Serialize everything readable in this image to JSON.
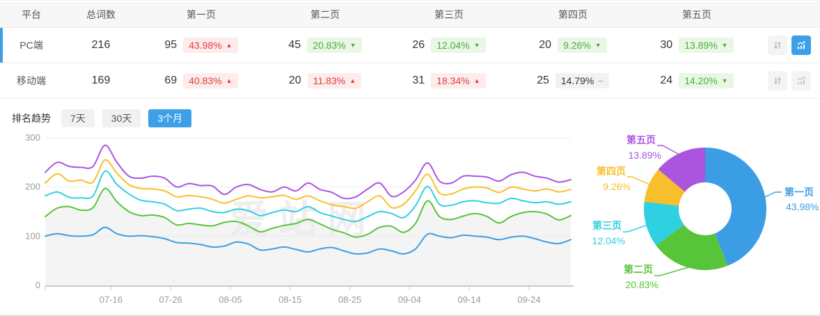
{
  "colors": {
    "accent_blue": "#3d9fe8",
    "series": [
      "#3b9ee5",
      "#57c43a",
      "#2fd0e2",
      "#f9be2b",
      "#ab55df"
    ],
    "badge_up_text": "#e23c3c",
    "badge_down_text": "#43b234",
    "area_fill": "#f4f4f4"
  },
  "table": {
    "headers": [
      "平台",
      "总词数",
      "第一页",
      "第二页",
      "第三页",
      "第四页",
      "第五页"
    ],
    "rows": [
      {
        "platform": "PC端",
        "total": "216",
        "selected": true,
        "pages": [
          {
            "count": "95",
            "pct": "43.98%",
            "dir": "up"
          },
          {
            "count": "45",
            "pct": "20.83%",
            "dir": "down"
          },
          {
            "count": "26",
            "pct": "12.04%",
            "dir": "down"
          },
          {
            "count": "20",
            "pct": "9.26%",
            "dir": "down"
          },
          {
            "count": "30",
            "pct": "13.89%",
            "dir": "down"
          }
        ]
      },
      {
        "platform": "移动端",
        "total": "169",
        "selected": false,
        "pages": [
          {
            "count": "69",
            "pct": "40.83%",
            "dir": "up"
          },
          {
            "count": "20",
            "pct": "11.83%",
            "dir": "up"
          },
          {
            "count": "31",
            "pct": "18.34%",
            "dir": "up"
          },
          {
            "count": "25",
            "pct": "14.79%",
            "dir": "flat"
          },
          {
            "count": "24",
            "pct": "14.20%",
            "dir": "down"
          }
        ]
      }
    ]
  },
  "trend": {
    "title": "排名趋势",
    "tabs": [
      {
        "label": "7天",
        "active": false
      },
      {
        "label": "30天",
        "active": false
      },
      {
        "label": "3个月",
        "active": true
      }
    ]
  },
  "watermark": "爱站网",
  "chart_data": [
    {
      "type": "line",
      "title": "排名趋势",
      "range": "3个月",
      "ylim": [
        0,
        300
      ],
      "y_ticks": [
        0,
        100,
        200,
        300
      ],
      "grid": true,
      "x_tick_labels": [
        "07-16",
        "07-26",
        "08-05",
        "08-15",
        "08-25",
        "09-04",
        "09-14",
        "09-24"
      ],
      "x": [
        "07-05",
        "07-07",
        "07-09",
        "07-11",
        "07-13",
        "07-15",
        "07-17",
        "07-19",
        "07-21",
        "07-23",
        "07-25",
        "07-27",
        "07-29",
        "07-31",
        "08-02",
        "08-04",
        "08-06",
        "08-08",
        "08-10",
        "08-12",
        "08-14",
        "08-16",
        "08-18",
        "08-20",
        "08-22",
        "08-24",
        "08-26",
        "08-28",
        "08-30",
        "09-01",
        "09-03",
        "09-05",
        "09-07",
        "09-09",
        "09-11",
        "09-13",
        "09-15",
        "09-17",
        "09-19",
        "09-21",
        "09-23",
        "09-25",
        "09-27",
        "09-29",
        "10-01"
      ],
      "area_fill_under": "第二页",
      "series": [
        {
          "name": "第一页",
          "color": "#3b9ee5",
          "values": [
            100,
            105,
            101,
            100,
            103,
            118,
            105,
            100,
            101,
            99,
            95,
            87,
            86,
            83,
            78,
            80,
            88,
            84,
            72,
            74,
            78,
            73,
            68,
            74,
            77,
            70,
            64,
            66,
            74,
            70,
            64,
            74,
            104,
            100,
            97,
            102,
            100,
            98,
            93,
            98,
            100,
            95,
            88,
            85,
            93
          ]
        },
        {
          "name": "第二页",
          "color": "#57c43a",
          "values": [
            140,
            157,
            160,
            153,
            158,
            197,
            170,
            150,
            142,
            143,
            138,
            123,
            126,
            123,
            121,
            128,
            130,
            121,
            109,
            116,
            122,
            126,
            134,
            125,
            114,
            107,
            98,
            104,
            118,
            120,
            108,
            126,
            172,
            140,
            134,
            141,
            146,
            140,
            127,
            140,
            148,
            150,
            145,
            133,
            142
          ]
        },
        {
          "name": "第三页",
          "color": "#2fd0e2",
          "values": [
            182,
            190,
            179,
            178,
            182,
            232,
            205,
            186,
            173,
            170,
            165,
            152,
            155,
            157,
            150,
            148,
            155,
            152,
            142,
            148,
            153,
            150,
            160,
            148,
            141,
            134,
            130,
            140,
            150,
            146,
            138,
            162,
            201,
            165,
            163,
            170,
            172,
            168,
            167,
            177,
            172,
            168,
            170,
            165,
            170
          ]
        },
        {
          "name": "第四页",
          "color": "#f9be2b",
          "values": [
            208,
            227,
            212,
            214,
            210,
            255,
            228,
            205,
            197,
            196,
            192,
            180,
            183,
            180,
            175,
            167,
            175,
            182,
            178,
            180,
            183,
            175,
            182,
            172,
            164,
            160,
            157,
            170,
            182,
            158,
            165,
            192,
            226,
            188,
            186,
            196,
            200,
            198,
            189,
            200,
            196,
            192,
            196,
            190,
            195
          ]
        },
        {
          "name": "第五页",
          "color": "#ab55df",
          "values": [
            230,
            250,
            242,
            240,
            242,
            285,
            250,
            222,
            218,
            222,
            218,
            200,
            207,
            203,
            202,
            185,
            200,
            205,
            195,
            190,
            200,
            192,
            208,
            195,
            189,
            177,
            180,
            196,
            208,
            181,
            190,
            214,
            249,
            212,
            208,
            222,
            222,
            220,
            212,
            225,
            230,
            222,
            218,
            210,
            215
          ]
        }
      ]
    },
    {
      "type": "pie",
      "donut": true,
      "unit": "%",
      "labels": [
        "第一页",
        "第二页",
        "第三页",
        "第四页",
        "第五页"
      ],
      "values": [
        43.98,
        20.83,
        12.04,
        9.26,
        13.89
      ],
      "display": [
        "43.98%",
        "20.83%",
        "12.04%",
        "9.26%",
        "13.89%"
      ],
      "colors": [
        "#3b9ee5",
        "#57c43a",
        "#2fd0e2",
        "#f9be2b",
        "#ab55df"
      ],
      "legend_position": "callout-labels"
    }
  ]
}
